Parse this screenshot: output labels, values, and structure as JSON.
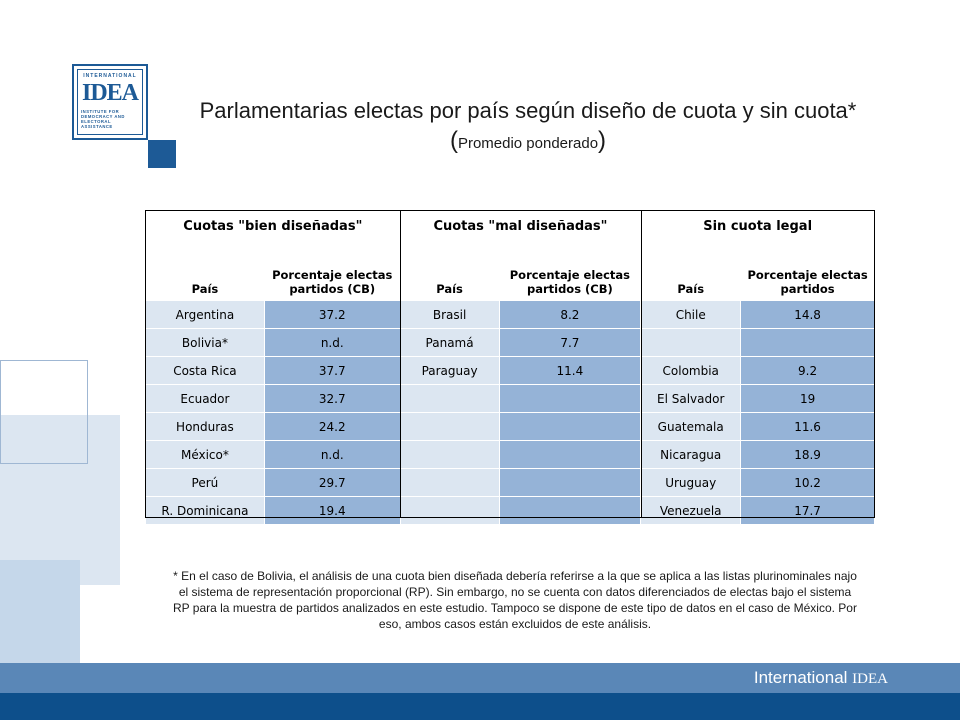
{
  "title": "Parlamentarias electas por país según diseño de cuota y sin cuota*",
  "subtitle": "Promedio ponderado",
  "logo": {
    "top": "INTERNATIONAL",
    "word": "IDEA",
    "lines": [
      "INSTITUTE FOR",
      "DEMOCRACY AND",
      "ELECTORAL",
      "ASSISTANCE"
    ]
  },
  "table": {
    "groups": [
      "Cuotas \"bien diseñadas\"",
      "Cuotas \"mal diseñadas\"",
      "Sin cuota legal"
    ],
    "columns": [
      "País",
      "Porcentaje electas partidos (CB)",
      "País",
      "Porcentaje electas partidos (CB)",
      "País",
      "Porcentaje electas partidos"
    ],
    "rows": [
      [
        "Argentina",
        "37.2",
        "Brasil",
        "8.2",
        "Chile",
        "14.8"
      ],
      [
        "Bolivia*",
        "n.d.",
        "Panamá",
        "7.7",
        "",
        ""
      ],
      [
        "Costa Rica",
        "37.7",
        "Paraguay",
        "11.4",
        "Colombia",
        "9.2"
      ],
      [
        "Ecuador",
        "32.7",
        "",
        "",
        "El Salvador",
        "19"
      ],
      [
        "Honduras",
        "24.2",
        "",
        "",
        "Guatemala",
        "11.6"
      ],
      [
        "México*",
        "n.d.",
        "",
        "",
        "Nicaragua",
        "18.9"
      ],
      [
        "Perú",
        "29.7",
        "",
        "",
        "Uruguay",
        "10.2"
      ],
      [
        "R. Dominicana",
        "19.4",
        "",
        "",
        "Venezuela",
        "17.7"
      ]
    ]
  },
  "footnote": "* En el caso de Bolivia, el análisis de una cuota bien diseñada debería referirse a la que se aplica a las listas plurinominales najo el sistema de representación proporcional (RP). Sin embargo, no se cuenta con datos diferenciados de electas bajo el sistema RP para la muestra de partidos analizados en este estudio. Tampoco se dispone de este tipo de datos en el caso de México. Por eso, ambos casos están excluidos de este análisis.",
  "brand": {
    "main": "International",
    "small": "IDEA"
  },
  "colors": {
    "accent": "#1d5a96",
    "cell_light": "#dce6f1",
    "cell_dark": "#95b3d7",
    "bar": "#0d4f8b"
  }
}
